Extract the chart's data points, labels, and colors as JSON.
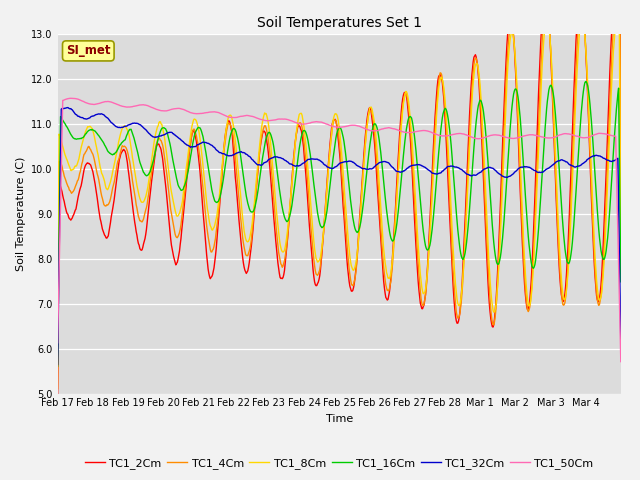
{
  "title": "Soil Temperatures Set 1",
  "xlabel": "Time",
  "ylabel": "Soil Temperature (C)",
  "ylim": [
    5.0,
    13.0
  ],
  "yticks": [
    5.0,
    6.0,
    7.0,
    8.0,
    9.0,
    10.0,
    11.0,
    12.0,
    13.0
  ],
  "xtick_labels": [
    "Feb 17",
    "Feb 18",
    "Feb 19",
    "Feb 20",
    "Feb 21",
    "Feb 22",
    "Feb 23",
    "Feb 24",
    "Feb 25",
    "Feb 26",
    "Feb 27",
    "Feb 28",
    "Mar 1",
    "Mar 2",
    "Mar 3",
    "Mar 4"
  ],
  "annotation": "SI_met",
  "annotation_color": "#8B0000",
  "annotation_bg": "#FFFF99",
  "annotation_border": "#999900",
  "bg_color": "#DCDCDC",
  "line_colors": {
    "TC1_2Cm": "#FF0000",
    "TC1_4Cm": "#FF8C00",
    "TC1_8Cm": "#FFD700",
    "TC1_16Cm": "#00CC00",
    "TC1_32Cm": "#0000CC",
    "TC1_50Cm": "#FF69B4"
  },
  "linewidth": 1.0,
  "title_fontsize": 10,
  "axis_fontsize": 8,
  "tick_fontsize": 7,
  "legend_fontsize": 8
}
